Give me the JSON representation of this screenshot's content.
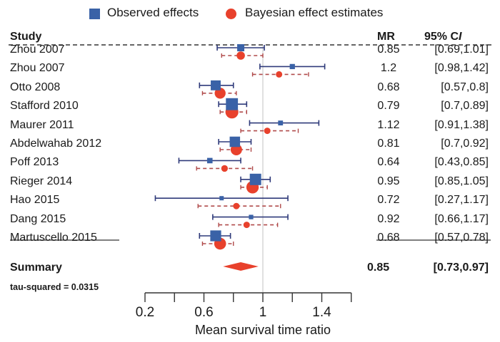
{
  "chart_data": {
    "type": "forest",
    "title": "",
    "xlabel": "Mean survival time ratio",
    "xlim": [
      0.2,
      1.6
    ],
    "xticks": [
      0.2,
      0.4,
      0.6,
      0.8,
      1.0,
      1.2,
      1.4,
      1.6
    ],
    "xtick_labels": [
      "0.2",
      "",
      "0.6",
      "",
      "1",
      "",
      "1.4",
      ""
    ],
    "reference_line": 1.0,
    "legend": {
      "position": "top-center",
      "entries": [
        {
          "label": "Observed effects",
          "marker": "square",
          "color": "#3a62a7"
        },
        {
          "label": "Bayesian effect estimates",
          "marker": "circle",
          "color": "#e8412c"
        }
      ]
    },
    "columns": {
      "study": "Study",
      "mr": "MR",
      "ci": "95% CI"
    },
    "studies": [
      {
        "name": "Zhou 2007",
        "mr": "0.85",
        "ci_text": "[0.69,1.01]",
        "observed": {
          "est": 0.85,
          "lo": 0.69,
          "hi": 1.01
        },
        "bayes": {
          "est": 0.85,
          "lo": 0.72,
          "hi": 1.0
        }
      },
      {
        "name": "Zhou 2007",
        "mr": "1.2",
        "ci_text": "[0.98,1.42]",
        "observed": {
          "est": 1.2,
          "lo": 0.98,
          "hi": 1.42
        },
        "bayes": {
          "est": 1.11,
          "lo": 0.93,
          "hi": 1.31
        }
      },
      {
        "name": "Otto 2008",
        "mr": "0.68",
        "ci_text": "[0.57,0.8]",
        "observed": {
          "est": 0.68,
          "lo": 0.57,
          "hi": 0.8
        },
        "bayes": {
          "est": 0.71,
          "lo": 0.59,
          "hi": 0.82
        }
      },
      {
        "name": "Stafford 2010",
        "mr": "0.79",
        "ci_text": "[0.7,0.89]",
        "observed": {
          "est": 0.79,
          "lo": 0.7,
          "hi": 0.89
        },
        "bayes": {
          "est": 0.79,
          "lo": 0.71,
          "hi": 0.89
        }
      },
      {
        "name": "Maurer 2011",
        "mr": "1.12",
        "ci_text": "[0.91,1.38]",
        "observed": {
          "est": 1.12,
          "lo": 0.91,
          "hi": 1.38
        },
        "bayes": {
          "est": 1.03,
          "lo": 0.85,
          "hi": 1.24
        }
      },
      {
        "name": "Abdelwahab 2012",
        "mr": "0.81",
        "ci_text": "[0.7,0.92]",
        "observed": {
          "est": 0.81,
          "lo": 0.7,
          "hi": 0.92
        },
        "bayes": {
          "est": 0.82,
          "lo": 0.71,
          "hi": 0.92
        }
      },
      {
        "name": "Poff 2013",
        "mr": "0.64",
        "ci_text": "[0.43,0.85]",
        "observed": {
          "est": 0.64,
          "lo": 0.43,
          "hi": 0.85
        },
        "bayes": {
          "est": 0.74,
          "lo": 0.55,
          "hi": 0.93
        }
      },
      {
        "name": "Rieger 2014",
        "mr": "0.95",
        "ci_text": "[0.85,1.05]",
        "observed": {
          "est": 0.95,
          "lo": 0.85,
          "hi": 1.05
        },
        "bayes": {
          "est": 0.93,
          "lo": 0.85,
          "hi": 1.03
        }
      },
      {
        "name": "Hao 2015",
        "mr": "0.72",
        "ci_text": "[0.27,1.17]",
        "observed": {
          "est": 0.72,
          "lo": 0.27,
          "hi": 1.17
        },
        "bayes": {
          "est": 0.82,
          "lo": 0.56,
          "hi": 1.12
        }
      },
      {
        "name": "Dang 2015",
        "mr": "0.92",
        "ci_text": "[0.66,1.17]",
        "observed": {
          "est": 0.92,
          "lo": 0.66,
          "hi": 1.17
        },
        "bayes": {
          "est": 0.89,
          "lo": 0.7,
          "hi": 1.1
        }
      },
      {
        "name": "Martuscello 2015",
        "mr": "0.68",
        "ci_text": "[0.57,0.78]",
        "observed": {
          "est": 0.68,
          "lo": 0.57,
          "hi": 0.78
        },
        "bayes": {
          "est": 0.71,
          "lo": 0.59,
          "hi": 0.8
        }
      }
    ],
    "summary": {
      "label": "Summary",
      "mr": "0.85",
      "ci_text": "[0.73,0.97]",
      "est": 0.85,
      "lo": 0.73,
      "hi": 0.97
    },
    "tau_squared_text": "tau-squared = 0.0315",
    "colors": {
      "observed": "#3a62a7",
      "observed_ci": "#2f3a7a",
      "bayes": "#e8412c",
      "bayes_ci": "#b04a4a",
      "summary": "#e8412c",
      "refline": "#cccccc"
    }
  }
}
